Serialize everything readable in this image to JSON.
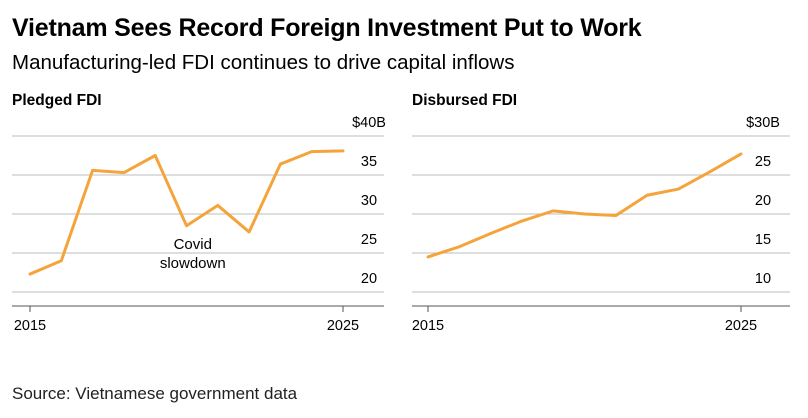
{
  "header": {
    "title": "Vietnam Sees Record Foreign Investment Put to Work",
    "subtitle": "Manufacturing-led FDI continues to drive capital inflows"
  },
  "footer": {
    "source": "Source: Vietnamese government data"
  },
  "colors": {
    "line": "#f5a43b",
    "grid": "#bdbdbd",
    "text": "#000000"
  },
  "chart_data": [
    {
      "type": "line",
      "title": "Pledged FDI",
      "xlabel": "",
      "ylabel": "",
      "x": [
        2015,
        2016,
        2017,
        2018,
        2019,
        2020,
        2021,
        2022,
        2023,
        2024,
        2025
      ],
      "x_ticks": [
        "2015",
        "2025"
      ],
      "xlim": [
        2015,
        2025
      ],
      "y_ticks": [
        20,
        25,
        30,
        35,
        40
      ],
      "y_tick_labels": [
        "20",
        "25",
        "30",
        "35",
        "$40B"
      ],
      "ylim": [
        20,
        40
      ],
      "grid": true,
      "series": [
        {
          "values": [
            22.3,
            24.0,
            35.6,
            35.3,
            37.5,
            28.5,
            31.1,
            27.7,
            36.4,
            38.0,
            38.1
          ]
        }
      ],
      "annotations": [
        {
          "lines": [
            "Covid",
            "slowdown"
          ],
          "x": 2020.2,
          "y": 25.5
        }
      ]
    },
    {
      "type": "line",
      "title": "Disbursed FDI",
      "xlabel": "",
      "ylabel": "",
      "x": [
        2015,
        2016,
        2017,
        2018,
        2019,
        2020,
        2021,
        2022,
        2023,
        2024,
        2025
      ],
      "x_ticks": [
        "2015",
        "2025"
      ],
      "xlim": [
        2015,
        2025
      ],
      "y_ticks": [
        10,
        15,
        20,
        25,
        30
      ],
      "y_tick_labels": [
        "10",
        "15",
        "20",
        "25",
        "$30B"
      ],
      "ylim": [
        10,
        30
      ],
      "grid": true,
      "series": [
        {
          "values": [
            14.5,
            15.8,
            17.5,
            19.1,
            20.4,
            20.0,
            19.8,
            22.4,
            23.2,
            25.4,
            27.7
          ]
        }
      ],
      "annotations": []
    }
  ]
}
